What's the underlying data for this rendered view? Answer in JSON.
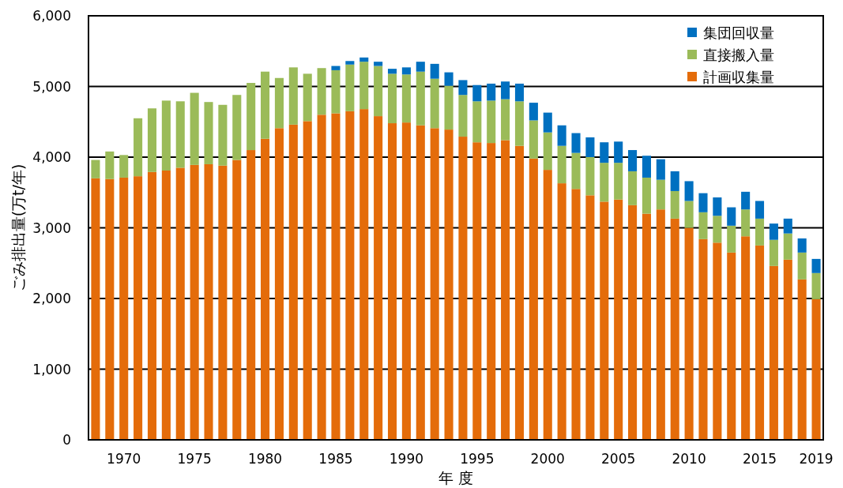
{
  "chart_data": {
    "type": "bar",
    "stacked": true,
    "xlabel": "年 度",
    "ylabel": "ごみ排出量(万t/年)",
    "categories": [
      null,
      null,
      "1970",
      null,
      null,
      null,
      null,
      "1975",
      null,
      null,
      null,
      null,
      "1980",
      null,
      null,
      null,
      null,
      "1985",
      null,
      null,
      null,
      null,
      "1990",
      null,
      null,
      null,
      null,
      "1995",
      null,
      null,
      null,
      null,
      "2000",
      null,
      null,
      null,
      null,
      "2005",
      null,
      null,
      null,
      null,
      "2010",
      null,
      null,
      null,
      null,
      "2015",
      null,
      null,
      null,
      "2019"
    ],
    "series": [
      {
        "name": "計画収集量",
        "color": "#e46c0a",
        "values": [
          3700,
          3690,
          3710,
          3730,
          3790,
          3810,
          3850,
          3890,
          3900,
          3880,
          3960,
          4100,
          4260,
          4410,
          4460,
          4510,
          4600,
          4620,
          4650,
          4680,
          4580,
          4480,
          4490,
          4450,
          4410,
          4390,
          4290,
          4210,
          4200,
          4240,
          4160,
          3980,
          3820,
          3630,
          3550,
          3460,
          3370,
          3400,
          3320,
          3200,
          3260,
          3130,
          3000,
          2840,
          2790,
          2650,
          2880,
          2750,
          2460,
          2550,
          2270,
          1990
        ]
      },
      {
        "name": "直接搬入量",
        "color": "#9bbb59",
        "values": [
          260,
          390,
          320,
          820,
          900,
          990,
          940,
          1020,
          880,
          860,
          920,
          950,
          950,
          710,
          810,
          670,
          660,
          610,
          660,
          670,
          710,
          700,
          680,
          760,
          700,
          620,
          590,
          580,
          600,
          580,
          630,
          540,
          530,
          530,
          510,
          540,
          550,
          520,
          480,
          510,
          420,
          390,
          380,
          380,
          380,
          380,
          380,
          380,
          370,
          370,
          380,
          370
        ]
      },
      {
        "name": "集団回収量",
        "color": "#0070c0",
        "values": [
          0,
          0,
          0,
          0,
          0,
          0,
          0,
          0,
          0,
          0,
          0,
          0,
          0,
          0,
          0,
          0,
          0,
          60,
          50,
          60,
          60,
          70,
          100,
          140,
          210,
          190,
          210,
          230,
          240,
          250,
          250,
          250,
          280,
          290,
          280,
          280,
          290,
          300,
          300,
          310,
          290,
          280,
          280,
          270,
          260,
          260,
          250,
          250,
          230,
          210,
          200,
          200
        ]
      }
    ],
    "ylim": [
      0,
      6000
    ],
    "yticks": [
      {
        "value": 0,
        "label": "0"
      },
      {
        "value": 1000,
        "label": "1,000"
      },
      {
        "value": 2000,
        "label": "2,000"
      },
      {
        "value": 3000,
        "label": "3,000"
      },
      {
        "value": 4000,
        "label": "4,000"
      },
      {
        "value": 5000,
        "label": "5,000"
      },
      {
        "value": 6000,
        "label": "6,000"
      }
    ],
    "grid": "y",
    "legend": "top right"
  }
}
